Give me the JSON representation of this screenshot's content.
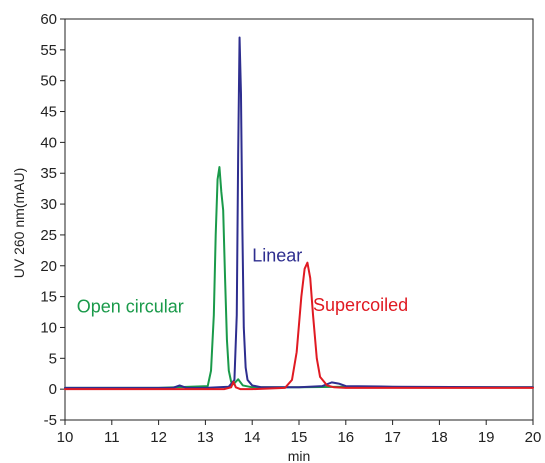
{
  "chart_data": {
    "type": "line",
    "title": "",
    "xlabel": "min",
    "ylabel": "UV 260 nm(mAU)",
    "xlim": [
      10,
      20
    ],
    "ylim": [
      -5,
      60
    ],
    "x_ticks": [
      10,
      11,
      12,
      13,
      14,
      15,
      16,
      17,
      18,
      19,
      20
    ],
    "y_ticks": [
      -5,
      0,
      5,
      10,
      15,
      20,
      25,
      30,
      35,
      40,
      45,
      50,
      55,
      60
    ],
    "grid": false,
    "legend": "none",
    "series": [
      {
        "name": "Open circular",
        "color": "#1a9a4a",
        "x": [
          10,
          12,
          13.05,
          13.12,
          13.18,
          13.22,
          13.26,
          13.3,
          13.34,
          13.38,
          13.42,
          13.46,
          13.5,
          13.55,
          13.6,
          13.7,
          13.8,
          14,
          15,
          16,
          18,
          20
        ],
        "y": [
          0.2,
          0.2,
          0.5,
          3,
          12,
          25,
          34,
          36,
          32,
          29,
          18,
          8,
          3,
          1.2,
          0.8,
          1.6,
          0.6,
          0.3,
          0.3,
          0.4,
          0.3,
          0.3
        ]
      },
      {
        "name": "Linear",
        "color": "#2e2e8f",
        "x": [
          10,
          12.3,
          12.45,
          12.6,
          13,
          13.5,
          13.62,
          13.67,
          13.7,
          13.73,
          13.76,
          13.79,
          13.82,
          13.86,
          13.9,
          14,
          14.2,
          15,
          15.5,
          15.7,
          15.85,
          16,
          17,
          20
        ],
        "y": [
          0.2,
          0.2,
          0.6,
          0.2,
          0.2,
          0.4,
          1.5,
          12,
          38,
          57,
          48,
          26,
          10,
          3.5,
          1.5,
          0.6,
          0.3,
          0.3,
          0.5,
          1.1,
          0.9,
          0.5,
          0.4,
          0.3
        ]
      },
      {
        "name": "Supercoiled",
        "color": "#e01a22",
        "x": [
          10,
          13.4,
          13.55,
          13.6,
          13.65,
          13.75,
          14,
          14.7,
          14.85,
          14.95,
          15.05,
          15.12,
          15.18,
          15.24,
          15.3,
          15.38,
          15.45,
          15.6,
          15.75,
          16,
          20
        ],
        "y": [
          0,
          0,
          0.3,
          1.2,
          0.3,
          0,
          0,
          0.2,
          1.5,
          6,
          15,
          19.5,
          20.5,
          18,
          12,
          5,
          2,
          0.6,
          0.3,
          0.2,
          0.2
        ]
      }
    ],
    "annotations": [
      {
        "text": "Open circular",
        "x": 10.25,
        "y": 12.4,
        "color": "#1a9a4a"
      },
      {
        "text": "Linear",
        "x": 14.0,
        "y": 20.7,
        "color": "#2e2e8f"
      },
      {
        "text": "Supercoiled",
        "x": 15.3,
        "y": 12.7,
        "color": "#e01a22"
      }
    ]
  }
}
